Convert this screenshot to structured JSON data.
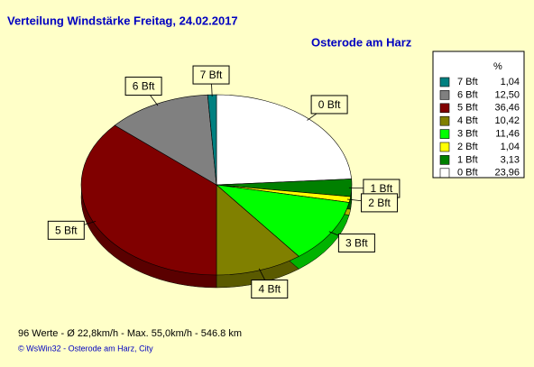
{
  "chart_data": {
    "type": "pie",
    "title": "Verteilung Windstärke  Freitag, 24.02.2017",
    "subtitle": "Osterode am Harz",
    "legend_header": "%",
    "categories": [
      "7 Bft",
      "6 Bft",
      "5 Bft",
      "4 Bft",
      "3 Bft",
      "2 Bft",
      "1 Bft",
      "0 Bft"
    ],
    "values": [
      1.04,
      12.5,
      36.46,
      10.42,
      11.46,
      1.04,
      3.13,
      23.96
    ],
    "value_labels": [
      "1,04",
      "12,50",
      "36,46",
      "10,42",
      "11,46",
      "1,04",
      "3,13",
      "23,96"
    ],
    "colors": [
      "#008080",
      "#808080",
      "#800000",
      "#808000",
      "#00ff00",
      "#ffff00",
      "#008000",
      "#ffffff"
    ],
    "legend": "right",
    "footer": "96 Werte   -   Ø 22,8km/h   -   Max. 55,0km/h   -   546.8 km",
    "credit": "© WsWin32  -  Osterode am Harz, City"
  }
}
